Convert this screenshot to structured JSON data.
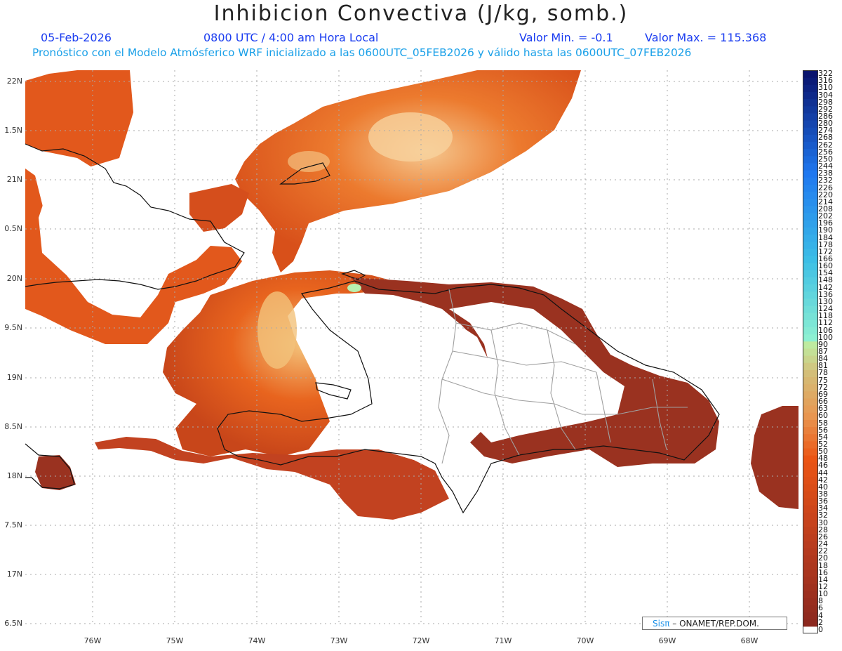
{
  "title": "Inhibicion Convectiva (J/kg, somb.)",
  "date": "05-Feb-2026",
  "time": "0800 UTC / 4:00 am Hora Local",
  "valmin_label": "Valor Min. = -0.1",
  "valmax_label": "Valor Max. = 115.368",
  "forecast_line": "Pronóstico con el Modelo Atmósferico WRF inicializado a las 0600UTC_05FEB2026 y válido hasta las  0600UTC_07FEB2026",
  "credit": {
    "brand": "Sisπ",
    "text": " – ONAMET/REP.DOM."
  },
  "lat_labels": [
    "22N",
    "1.5N",
    "21N",
    "0.5N",
    "20N",
    "9.5N",
    "19N",
    "8.5N",
    "18N",
    "7.5N",
    "17N",
    "6.5N"
  ],
  "lon_labels": [
    "76W",
    "75W",
    "74W",
    "73W",
    "72W",
    "71W",
    "70W",
    "69W",
    "68W"
  ],
  "colorbar_levels": [
    "0",
    "2",
    "4",
    "6",
    "8",
    "10",
    "12",
    "14",
    "16",
    "18",
    "20",
    "22",
    "24",
    "26",
    "28",
    "30",
    "32",
    "34",
    "36",
    "38",
    "40",
    "42",
    "44",
    "46",
    "48",
    "50",
    "52",
    "54",
    "56",
    "58",
    "60",
    "63",
    "66",
    "69",
    "72",
    "75",
    "78",
    "81",
    "84",
    "87",
    "90",
    "100",
    "106",
    "112",
    "118",
    "124",
    "130",
    "136",
    "142",
    "148",
    "154",
    "160",
    "166",
    "172",
    "178",
    "184",
    "190",
    "196",
    "202",
    "208",
    "214",
    "220",
    "226",
    "232",
    "238",
    "244",
    "250",
    "256",
    "262",
    "268",
    "274",
    "280",
    "286",
    "292",
    "298",
    "304",
    "310",
    "316",
    "322"
  ],
  "colors": {
    "low": "#8e2b1e",
    "mid": "#e8561a",
    "high": "#f0a050",
    "peak": "#b8f0b0",
    "coast": "#111111",
    "provinces": "#a0a0a0"
  }
}
